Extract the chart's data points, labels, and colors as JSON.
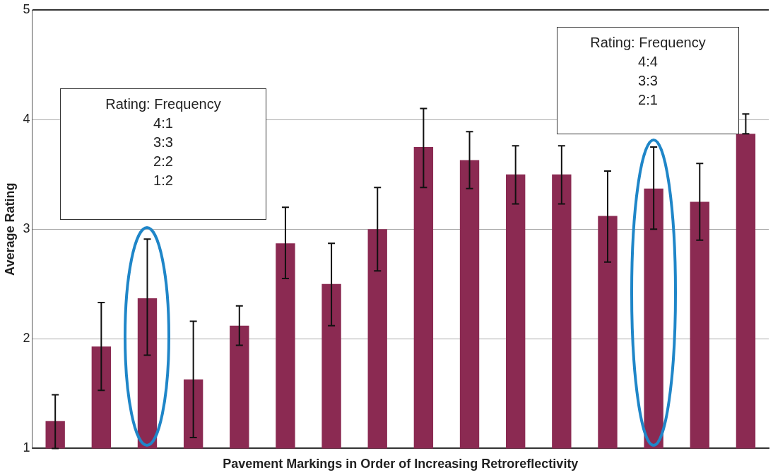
{
  "chart_data": {
    "type": "bar",
    "xlabel": "Pavement Markings in Order of Increasing Retroreflectivity",
    "ylabel": "Average Rating",
    "categories": [
      null,
      null,
      null,
      null,
      null,
      null,
      null,
      null,
      null,
      null,
      null,
      null,
      null,
      null,
      null,
      null
    ],
    "values": [
      1.25,
      1.93,
      2.37,
      1.63,
      2.12,
      2.87,
      2.5,
      3.0,
      3.75,
      3.63,
      3.5,
      3.5,
      3.12,
      3.37,
      3.25,
      3.87
    ],
    "errors": [
      [
        1.0,
        1.49
      ],
      [
        1.53,
        2.33
      ],
      [
        1.85,
        2.91
      ],
      [
        1.1,
        2.16
      ],
      [
        1.94,
        2.3
      ],
      [
        2.55,
        3.2
      ],
      [
        2.12,
        2.87
      ],
      [
        2.62,
        3.38
      ],
      [
        3.38,
        4.1
      ],
      [
        3.37,
        3.89
      ],
      [
        3.23,
        3.76
      ],
      [
        3.23,
        3.76
      ],
      [
        2.7,
        3.53
      ],
      [
        3.0,
        3.75
      ],
      [
        2.9,
        3.6
      ],
      [
        3.87,
        4.05
      ]
    ],
    "color": "#8b2a52",
    "ylim": [
      1,
      5
    ],
    "yticks": [
      1,
      2,
      3,
      4,
      5
    ],
    "grid": "y",
    "legend": false,
    "annotations": [
      "Rating: Frequency\n4:1\n3:3\n2:2\n1:2",
      "Rating: Frequency\n4:4\n3:3\n2:1"
    ]
  }
}
